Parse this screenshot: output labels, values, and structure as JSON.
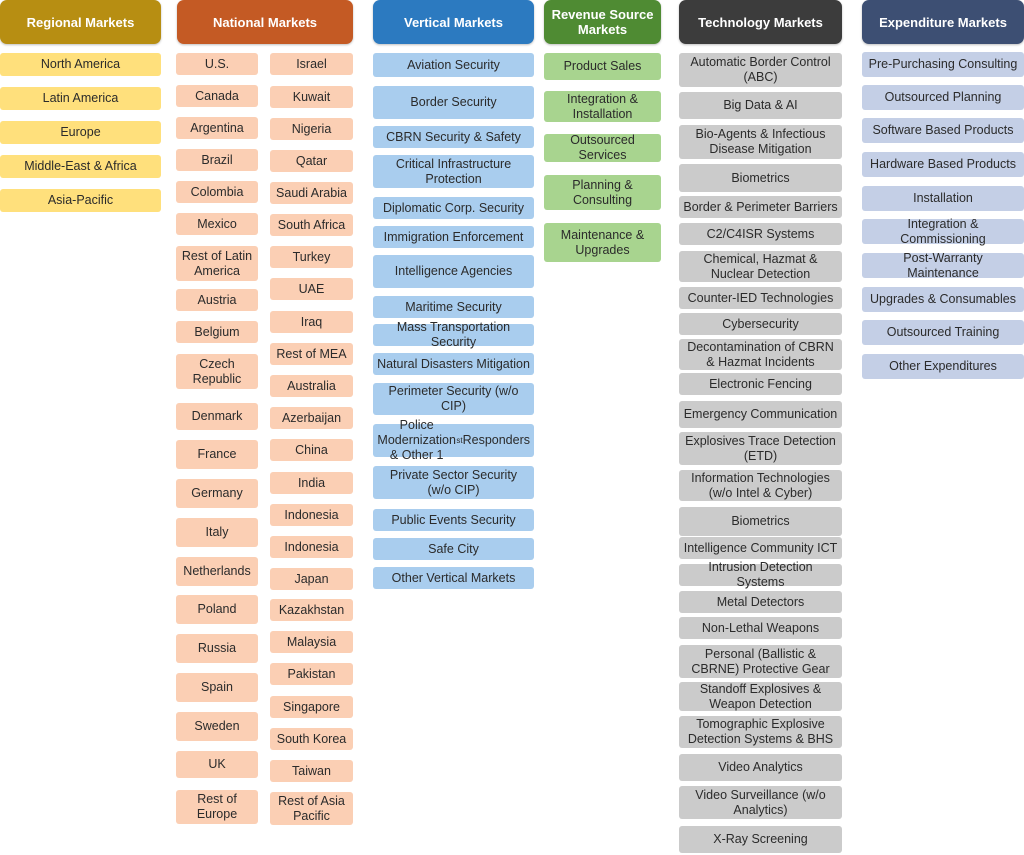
{
  "regional": {
    "title": "Regional Markets",
    "items": [
      "North America",
      "Latin America",
      "Europe",
      "Middle-East & Africa",
      "Asia-Pacific"
    ]
  },
  "national": {
    "title": "National Markets",
    "col1": [
      "U.S.",
      "Canada",
      "Argentina",
      "Brazil",
      "Colombia",
      "Mexico",
      "Rest of Latin America",
      "Austria",
      "Belgium",
      "Czech Republic",
      "Denmark",
      "France",
      "Germany",
      "Italy",
      "Netherlands",
      "Poland",
      "Russia",
      "Spain",
      "Sweden",
      "UK",
      "Rest of Europe"
    ],
    "col2": [
      "Israel",
      "Kuwait",
      "Nigeria",
      "Qatar",
      "Saudi Arabia",
      "South Africa",
      "Turkey",
      "UAE",
      "Iraq",
      "Rest of MEA",
      "Australia",
      "Azerbaijan",
      "China",
      "India",
      "Indonesia",
      "Indonesia",
      "Japan",
      "Kazakhstan",
      "Malaysia",
      "Pakistan",
      "Singapore",
      "South Korea",
      "Taiwan",
      "Rest of Asia Pacific"
    ]
  },
  "vertical": {
    "title": "Vertical Markets",
    "items": [
      "Aviation Security",
      "Border Security",
      "CBRN Security & Safety",
      "Critical Infrastructure Protection",
      "Diplomatic Corp. Security",
      "Immigration Enforcement",
      "Intelligence Agencies",
      "Maritime Security",
      "Mass Transportation Security",
      "Natural Disasters Mitigation",
      "Perimeter Security (w/o CIP)",
      "Police Modernization & Other 1st Responders",
      "Private Sector Security (w/o CIP)",
      "Public Events Security",
      "Safe City",
      "Other Vertical Markets"
    ]
  },
  "revenue": {
    "title": "Revenue Source Markets",
    "items": [
      "Product Sales",
      "Integration & Installation",
      "Outsourced Services",
      "Planning & Consulting",
      "Maintenance & Upgrades"
    ]
  },
  "technology": {
    "title": "Technology Markets",
    "items": [
      "Automatic Border Control (ABC)",
      "Big Data & AI",
      "Bio-Agents & Infectious Disease Mitigation",
      "Biometrics",
      "Border & Perimeter Barriers",
      "C2/C4ISR Systems",
      "Chemical, Hazmat & Nuclear Detection",
      "Counter-IED Technologies",
      "Cybersecurity",
      "Decontamination of CBRN & Hazmat Incidents",
      "Electronic Fencing",
      "Emergency Communication",
      "Explosives Trace Detection (ETD)",
      "Information Technologies (w/o Intel & Cyber)",
      "Biometrics",
      "Intelligence Community ICT",
      "Intrusion Detection Systems",
      "Metal Detectors",
      "Non-Lethal Weapons",
      "Personal (Ballistic & CBRNE) Protective Gear",
      "Standoff Explosives & Weapon Detection",
      "Tomographic Explosive Detection Systems & BHS",
      "Video Analytics",
      "Video Surveillance (w/o Analytics)",
      "X-Ray Screening"
    ]
  },
  "expenditure": {
    "title": "Expenditure Markets",
    "items": [
      "Pre-Purchasing Consulting",
      "Outsourced Planning",
      "Software Based Products",
      "Hardware Based Products",
      "Installation",
      "Integration & Commissioning",
      "Post-Warranty Maintenance",
      "Upgrades & Consumables",
      "Outsourced Training",
      "Other Expenditures"
    ]
  },
  "colors": {
    "regional_header": "#b78e12",
    "regional_box": "#ffe07c",
    "national_header": "#c45a24",
    "national_box": "#fbcfb4",
    "vertical_header": "#2c7ac0",
    "vertical_box": "#a9cdee",
    "revenue_header": "#4f8b33",
    "revenue_box": "#a8d48f",
    "technology_header": "#3c3c3c",
    "technology_box": "#cbcbcb",
    "expenditure_header": "#3d4f73",
    "expenditure_box": "#c4cfe6"
  }
}
